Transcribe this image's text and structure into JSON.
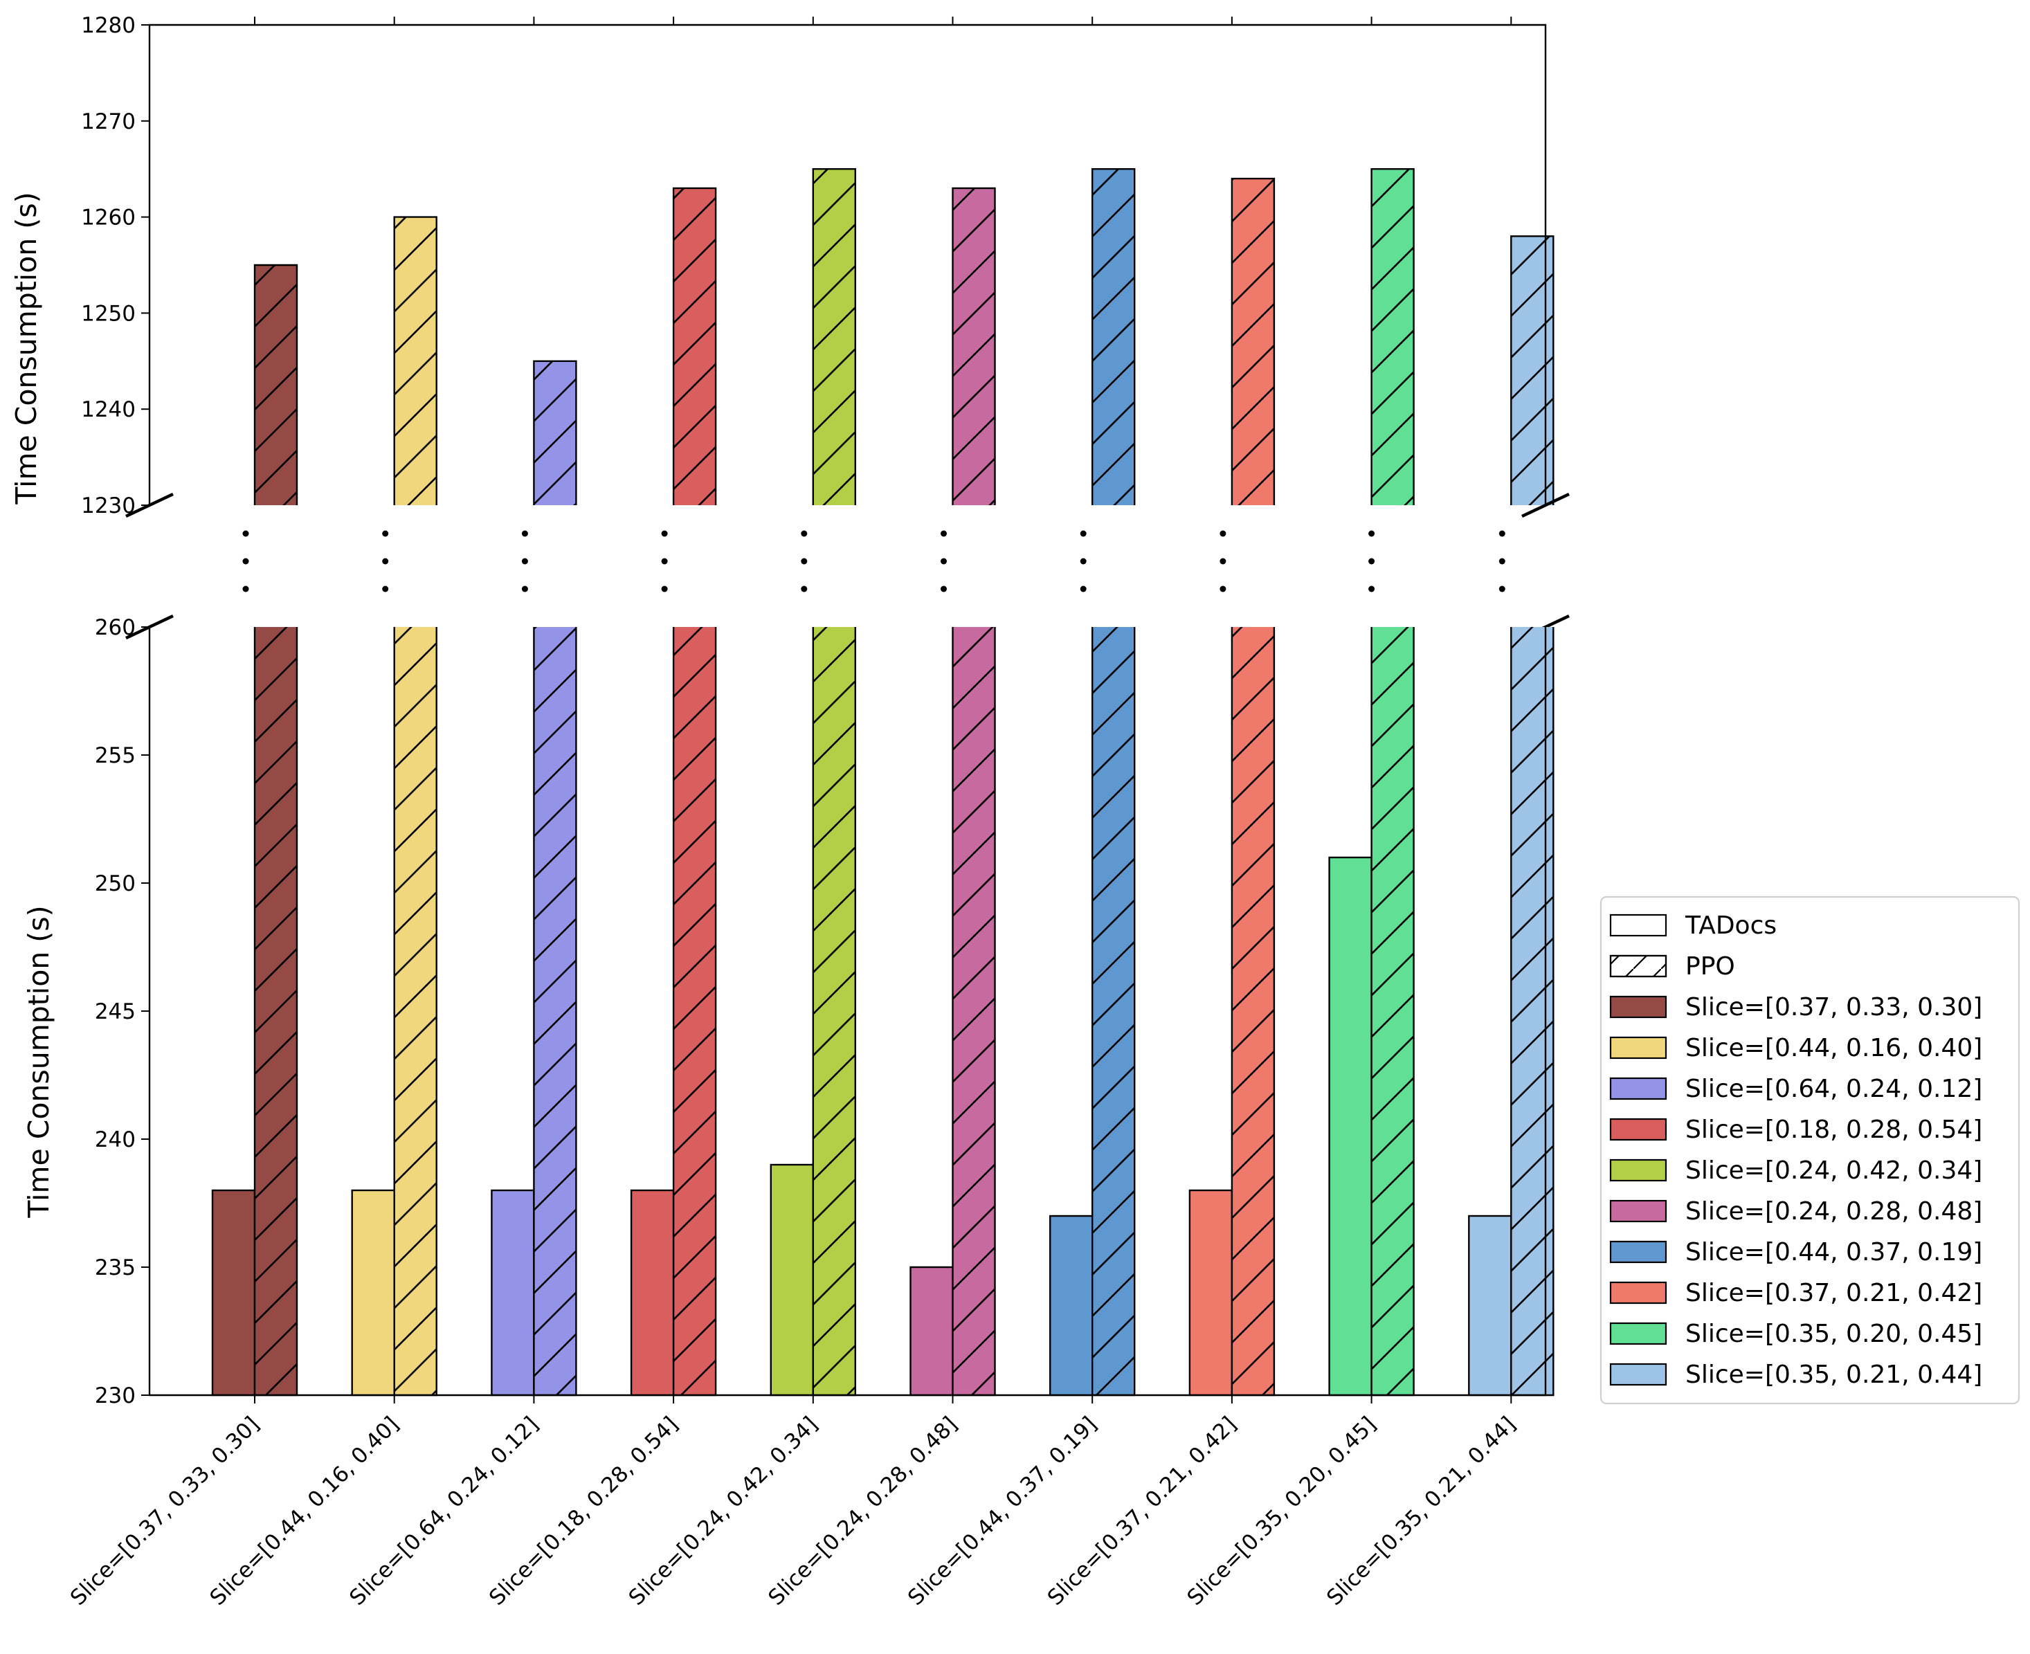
{
  "chart_data": {
    "type": "bar",
    "broken_axis": true,
    "categories": [
      "Slice=[0.37, 0.33, 0.30]",
      "Slice=[0.44, 0.16, 0.40]",
      "Slice=[0.64, 0.24, 0.12]",
      "Slice=[0.18, 0.28, 0.54]",
      "Slice=[0.24, 0.42, 0.34]",
      "Slice=[0.24, 0.28, 0.48]",
      "Slice=[0.44, 0.37, 0.19]",
      "Slice=[0.37, 0.21, 0.42]",
      "Slice=[0.35, 0.20, 0.45]",
      "Slice=[0.35, 0.21, 0.44]"
    ],
    "colors": [
      "#954a45",
      "#f0d77e",
      "#9394e8",
      "#d95f5e",
      "#b3cf47",
      "#c76a9f",
      "#5f97d1",
      "#ef7a6c",
      "#61e095",
      "#9dc3e6"
    ],
    "series": [
      {
        "name": "TADocs",
        "hatch": "none",
        "values": [
          238,
          238,
          238,
          238,
          239,
          235,
          237,
          238,
          251,
          237
        ]
      },
      {
        "name": "PPO",
        "hatch": "/",
        "values": [
          1255,
          1260,
          1245,
          1263,
          1265,
          1263,
          1265,
          1264,
          1265,
          1258
        ]
      }
    ],
    "ylabel": "Time Consumption (s)",
    "upper_axis": {
      "ylim": [
        1230,
        1280
      ],
      "ticks": [
        "1230",
        "1240",
        "1250",
        "1260",
        "1270",
        "1280"
      ]
    },
    "lower_axis": {
      "ylim": [
        230,
        260
      ],
      "ticks": [
        "230",
        "235",
        "240",
        "245",
        "250",
        "255",
        "260"
      ]
    },
    "legend_position": "right",
    "legend": [
      {
        "label": "TADocs",
        "color": "#ffffff",
        "hatch": false
      },
      {
        "label": "PPO",
        "color": "#ffffff",
        "hatch": true
      },
      {
        "label": "Slice=[0.37, 0.33, 0.30]",
        "color": "#954a45",
        "hatch": false
      },
      {
        "label": "Slice=[0.44, 0.16, 0.40]",
        "color": "#f0d77e",
        "hatch": false
      },
      {
        "label": "Slice=[0.64, 0.24, 0.12]",
        "color": "#9394e8",
        "hatch": false
      },
      {
        "label": "Slice=[0.18, 0.28, 0.54]",
        "color": "#d95f5e",
        "hatch": false
      },
      {
        "label": "Slice=[0.24, 0.42, 0.34]",
        "color": "#b3cf47",
        "hatch": false
      },
      {
        "label": "Slice=[0.24, 0.28, 0.48]",
        "color": "#c76a9f",
        "hatch": false
      },
      {
        "label": "Slice=[0.44, 0.37, 0.19]",
        "color": "#5f97d1",
        "hatch": false
      },
      {
        "label": "Slice=[0.37, 0.21, 0.42]",
        "color": "#ef7a6c",
        "hatch": false
      },
      {
        "label": "Slice=[0.35, 0.20, 0.45]",
        "color": "#61e095",
        "hatch": false
      },
      {
        "label": "Slice=[0.35, 0.21, 0.44]",
        "color": "#9dc3e6",
        "hatch": false
      }
    ]
  }
}
